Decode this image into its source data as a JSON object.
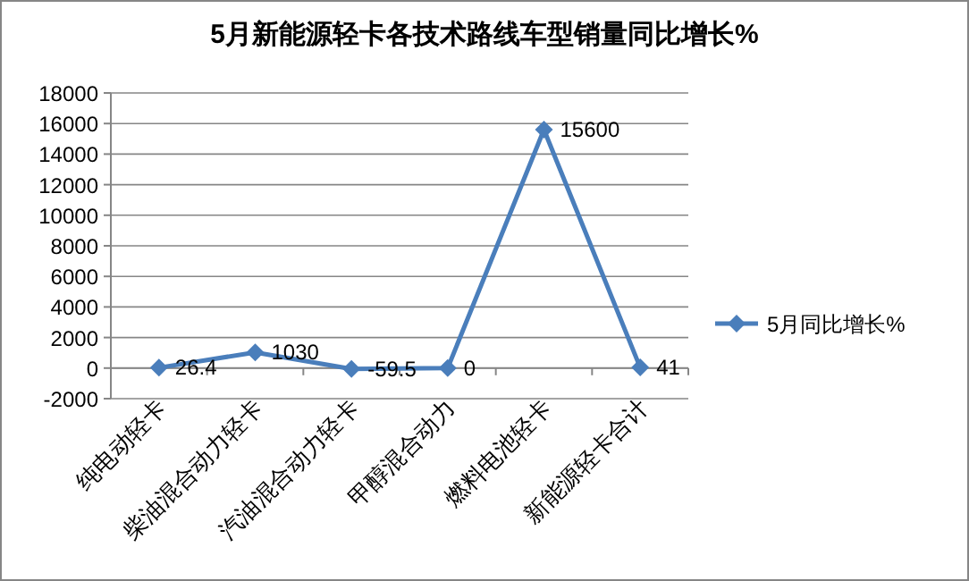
{
  "chart_data": {
    "type": "line",
    "title": "5月新能源轻卡各技术路线车型销量同比增长%",
    "categories": [
      "纯电动轻卡",
      "柴油混合动力轻卡",
      "汽油混合动力轻卡",
      "甲醇混合动力",
      "燃料电池轻卡",
      "新能源轻卡合计"
    ],
    "series": [
      {
        "name": "5月同比增长%",
        "color": "#4a7ebb",
        "values": [
          26.4,
          1030,
          -59.5,
          0,
          15600,
          41
        ]
      }
    ],
    "ylim": [
      -2000,
      18000
    ],
    "yticks": [
      -2000,
      0,
      2000,
      4000,
      6000,
      8000,
      10000,
      12000,
      14000,
      16000,
      18000
    ],
    "grid": "y",
    "legend": "right",
    "marker": "diamond",
    "line_style": "solid",
    "data_labels": true
  }
}
